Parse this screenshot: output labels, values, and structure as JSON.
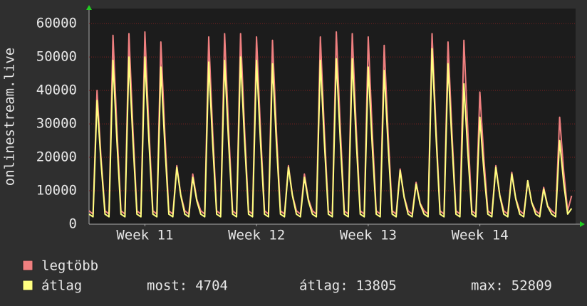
{
  "chart_data": {
    "type": "line",
    "y_label": "onlinestream.live",
    "x": [
      0,
      6,
      12,
      18,
      24,
      30,
      36,
      42,
      48,
      54,
      60,
      66,
      72,
      78,
      84,
      90,
      96,
      102,
      108,
      114,
      120,
      126,
      132,
      138,
      144,
      150,
      156,
      162,
      168,
      174,
      180,
      186,
      192,
      198,
      204,
      210,
      216,
      222,
      228,
      234,
      240,
      246,
      252,
      258,
      264,
      270,
      276,
      282,
      288,
      294,
      300,
      306,
      312,
      318,
      324,
      330,
      336,
      342,
      348,
      354,
      360,
      366,
      372,
      378,
      384,
      390,
      396,
      402,
      408,
      414,
      420,
      426,
      432,
      438,
      444,
      450,
      456,
      462,
      468,
      474,
      480,
      486,
      492,
      498,
      504,
      510,
      516,
      522,
      528,
      534,
      540,
      546,
      552,
      558,
      564,
      570,
      576,
      582,
      588,
      594,
      600,
      606,
      612,
      618,
      624,
      630,
      636,
      642,
      648,
      654,
      660,
      666,
      672,
      678,
      684,
      690,
      696,
      702,
      708,
      714,
      720,
      726
    ],
    "xlim": [
      0,
      732
    ],
    "xticks": [
      {
        "value": 84,
        "label": "Week 11"
      },
      {
        "value": 252,
        "label": "Week 12"
      },
      {
        "value": 420,
        "label": "Week 13"
      },
      {
        "value": 588,
        "label": "Week 14"
      }
    ],
    "ylim": [
      0,
      64500
    ],
    "yticks": [
      0,
      10000,
      20000,
      30000,
      40000,
      50000,
      60000
    ],
    "grid": true,
    "series": [
      {
        "name": "legtöbb",
        "color": "#f08080",
        "values": [
          4000,
          3000,
          40000,
          20000,
          4000,
          3000,
          56500,
          28250,
          4000,
          3000,
          57000,
          28500,
          4000,
          3000,
          57500,
          28750,
          4000,
          3000,
          54500,
          27250,
          4000,
          3000,
          17500,
          8750,
          4000,
          3000,
          15000,
          7500,
          4000,
          3000,
          56000,
          28000,
          4000,
          3000,
          57000,
          28500,
          4000,
          3000,
          57000,
          28500,
          4000,
          3000,
          56000,
          28000,
          4000,
          3000,
          55000,
          27500,
          4000,
          3000,
          17500,
          8750,
          4000,
          3000,
          15000,
          7500,
          4000,
          3000,
          56000,
          28000,
          4000,
          3000,
          57500,
          28750,
          4000,
          3000,
          57000,
          28500,
          4000,
          3000,
          56000,
          28000,
          4000,
          3000,
          53500,
          26750,
          4000,
          3000,
          16500,
          8250,
          4000,
          3000,
          12500,
          6250,
          4000,
          3000,
          57000,
          28500,
          4000,
          3000,
          54500,
          27250,
          4000,
          3000,
          55000,
          27500,
          4000,
          3000,
          39500,
          19750,
          4000,
          3000,
          17500,
          8750,
          4000,
          3000,
          15500,
          7750,
          4000,
          3000,
          13000,
          6500,
          4000,
          3000,
          11000,
          5500,
          4000,
          3000,
          32000,
          16000,
          4000,
          8500
        ]
      },
      {
        "name": "átlag",
        "color": "#ffff80",
        "values": [
          3000,
          2200,
          37000,
          18500,
          3000,
          2200,
          49000,
          24500,
          3000,
          2200,
          50000,
          25000,
          3000,
          2200,
          50000,
          25000,
          3000,
          2200,
          47000,
          23500,
          3000,
          2200,
          17000,
          8500,
          3000,
          2200,
          14000,
          7000,
          3000,
          2200,
          48500,
          24250,
          3000,
          2200,
          49000,
          24500,
          3000,
          2200,
          50000,
          25000,
          3000,
          2200,
          49000,
          24500,
          3000,
          2200,
          48000,
          24000,
          3000,
          2200,
          17000,
          8500,
          3000,
          2200,
          14000,
          7000,
          3000,
          2200,
          49000,
          24500,
          3000,
          2200,
          49500,
          24750,
          3000,
          2200,
          49500,
          24750,
          3000,
          2200,
          47000,
          23500,
          3000,
          2200,
          46000,
          23000,
          3000,
          2200,
          16000,
          8000,
          3000,
          2200,
          12000,
          6000,
          3000,
          2200,
          52500,
          26250,
          3000,
          2200,
          48000,
          24000,
          3000,
          2200,
          42000,
          21000,
          3000,
          2200,
          32000,
          16000,
          3000,
          2200,
          17000,
          8500,
          3000,
          2200,
          15000,
          7500,
          3000,
          2200,
          13000,
          6500,
          3000,
          2200,
          10500,
          5250,
          3000,
          2200,
          25000,
          12500,
          3000,
          4704
        ],
        "stats": [
          {
            "label": "most:",
            "value": 4704
          },
          {
            "label": "átlag:",
            "value": 13805
          },
          {
            "label": "max:",
            "value": 52809
          }
        ]
      }
    ]
  }
}
